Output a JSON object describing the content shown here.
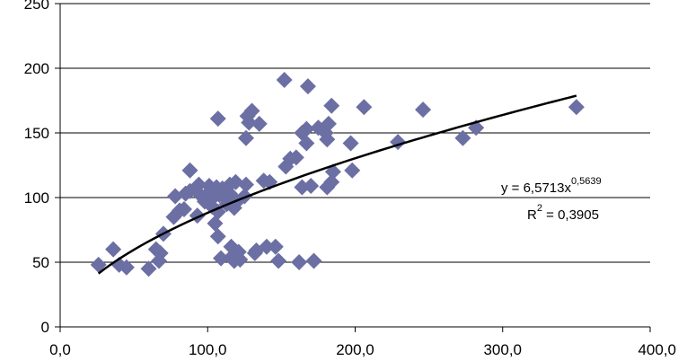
{
  "chart_data": {
    "type": "scatter",
    "title": "",
    "xlabel": "",
    "ylabel": "",
    "xlim": [
      0,
      400
    ],
    "ylim": [
      0,
      250
    ],
    "x_ticks": [
      "0,0",
      "100,0",
      "200,0",
      "300,0",
      "400,0"
    ],
    "x_tick_values": [
      0,
      100,
      200,
      300,
      400
    ],
    "y_ticks": [
      "0",
      "50",
      "100",
      "150",
      "200",
      "250"
    ],
    "y_tick_values": [
      0,
      50,
      100,
      150,
      200,
      250
    ],
    "grid": "horizontal",
    "legend": "none",
    "marker": "diamond",
    "marker_color": "#6b6fa3",
    "trendline_color": "#000000",
    "series": [
      {
        "points": [
          [
            26,
            48
          ],
          [
            36,
            60
          ],
          [
            40,
            48
          ],
          [
            45,
            46
          ],
          [
            60,
            45
          ],
          [
            65,
            60
          ],
          [
            67,
            51
          ],
          [
            68,
            57
          ],
          [
            70,
            72
          ],
          [
            77,
            85
          ],
          [
            78,
            101
          ],
          [
            81,
            90
          ],
          [
            84,
            91
          ],
          [
            85,
            103
          ],
          [
            88,
            105
          ],
          [
            88,
            121
          ],
          [
            93,
            86
          ],
          [
            94,
            110
          ],
          [
            95,
            102
          ],
          [
            98,
            97
          ],
          [
            100,
            103
          ],
          [
            101,
            109
          ],
          [
            102,
            98
          ],
          [
            103,
            93
          ],
          [
            104,
            103
          ],
          [
            105,
            80
          ],
          [
            106,
            108
          ],
          [
            107,
            89
          ],
          [
            107,
            70
          ],
          [
            107,
            161
          ],
          [
            108,
            102
          ],
          [
            109,
            53
          ],
          [
            110,
            107
          ],
          [
            112,
            100
          ],
          [
            113,
            95
          ],
          [
            115,
            110
          ],
          [
            115,
            103
          ],
          [
            116,
            62
          ],
          [
            117,
            55
          ],
          [
            118,
            92
          ],
          [
            118,
            51
          ],
          [
            119,
            112
          ],
          [
            120,
            97
          ],
          [
            121,
            58
          ],
          [
            122,
            52
          ],
          [
            125,
            101
          ],
          [
            126,
            110
          ],
          [
            126,
            146
          ],
          [
            127,
            163
          ],
          [
            128,
            158
          ],
          [
            130,
            167
          ],
          [
            132,
            57
          ],
          [
            133,
            59
          ],
          [
            135,
            157
          ],
          [
            138,
            113
          ],
          [
            140,
            62
          ],
          [
            142,
            112
          ],
          [
            146,
            62
          ],
          [
            148,
            51
          ],
          [
            152,
            191
          ],
          [
            153,
            124
          ],
          [
            156,
            130
          ],
          [
            160,
            131
          ],
          [
            162,
            50
          ],
          [
            164,
            108
          ],
          [
            164,
            150
          ],
          [
            167,
            153
          ],
          [
            167,
            142
          ],
          [
            168,
            186
          ],
          [
            170,
            109
          ],
          [
            172,
            51
          ],
          [
            175,
            154
          ],
          [
            180,
            150
          ],
          [
            181,
            108
          ],
          [
            181,
            145
          ],
          [
            182,
            157
          ],
          [
            184,
            171
          ],
          [
            184,
            112
          ],
          [
            185,
            120
          ],
          [
            197,
            142
          ],
          [
            198,
            121
          ],
          [
            206,
            170
          ],
          [
            229,
            143
          ],
          [
            246,
            168
          ],
          [
            273,
            146
          ],
          [
            282,
            154
          ],
          [
            350,
            170
          ]
        ]
      }
    ],
    "trendline": {
      "type": "power",
      "coefficient": 6.5713,
      "exponent": 0.5639,
      "r_squared": 0.3905,
      "x_start": 26,
      "x_end": 350
    },
    "annotations": {
      "equation_main": "y = 6,5713x",
      "equation_exp": "0,5639",
      "r2_base": "R",
      "r2_exp": "2",
      "r2_value": " = 0,3905"
    }
  }
}
